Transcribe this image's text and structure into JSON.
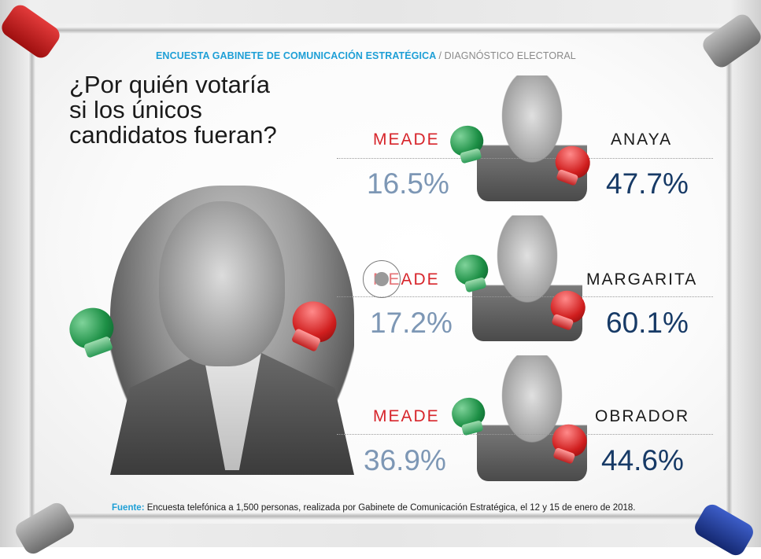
{
  "header": {
    "source_org": "ENCUESTA GABINETE DE COMUNICACIÓN ESTRATÉGICA",
    "section": "/ DIAGNÓSTICO ELECTORAL"
  },
  "question": {
    "line1": "¿Por quién votaría",
    "line2": "si los únicos",
    "line3": "candidatos fueran?"
  },
  "matchups": [
    {
      "left_name": "MEADE",
      "left_pct": "16.5%",
      "right_name": "ANAYA",
      "right_pct": "47.7%"
    },
    {
      "left_name": "MEADE",
      "left_pct": "17.2%",
      "right_name": "MARGARITA",
      "right_pct": "60.1%"
    },
    {
      "left_name": "MEADE",
      "left_pct": "36.9%",
      "right_name": "OBRADOR",
      "right_pct": "44.6%"
    }
  ],
  "footer": {
    "label": "Fuente:",
    "text": " Encuesta telefónica a 1,500 personas, realizada por Gabinete de Comunicación Estratégica, el 12 y 15 de enero de 2018."
  },
  "colors": {
    "meade_red": "#d7252b",
    "left_pct": "#7d97b5",
    "right_pct": "#173a66",
    "header_blue": "#1e9fd6"
  },
  "icons": [
    "boxing-glove-green-icon",
    "boxing-glove-red-icon"
  ]
}
